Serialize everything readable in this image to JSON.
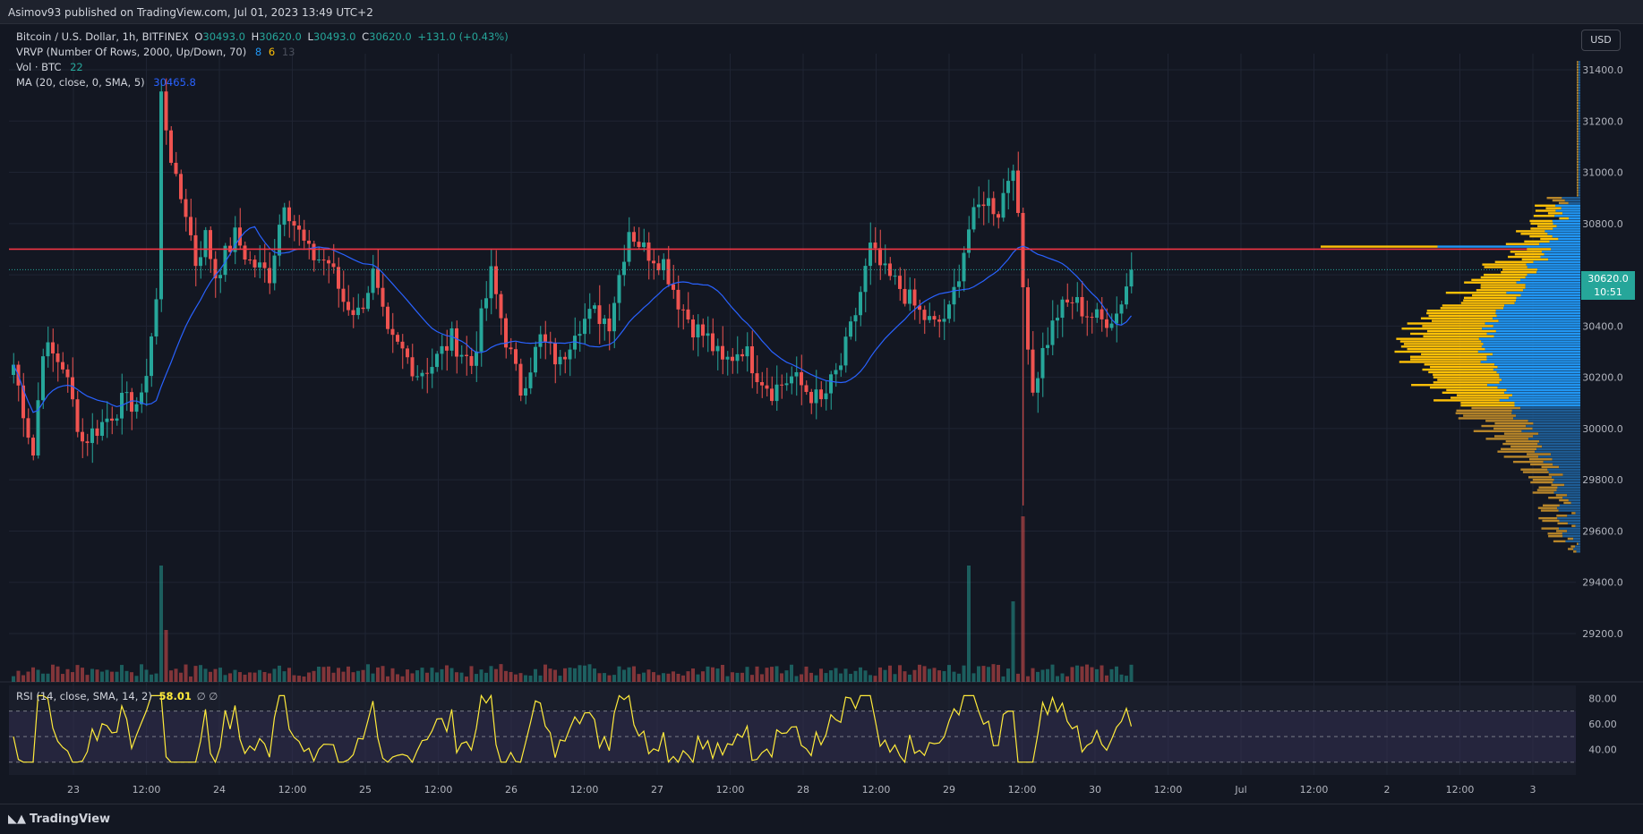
{
  "header": {
    "published_by": "Asimov93 published on TradingView.com, Jul 01, 2023 13:49 UTC+2"
  },
  "legend": {
    "symbol": "Bitcoin / U.S. Dollar, 1h, BITFINEX",
    "ohlc": {
      "o_label": "O",
      "o": "30493.0",
      "h_label": "H",
      "h": "30620.0",
      "l_label": "L",
      "l": "30493.0",
      "c_label": "C",
      "c": "30620.0",
      "change": "+131.0 (+0.43%)"
    },
    "vrvp": {
      "label": "VRVP (Number Of Rows, 2000, Up/Down, 70)",
      "v1": "8",
      "v2": "6",
      "v3": "13",
      "c1": "#2196f3",
      "c2": "#ffc107",
      "c3": "#4a4f5c"
    },
    "vol": {
      "label": "Vol · BTC",
      "value": "22"
    },
    "ma": {
      "label": "MA (20, close, 0, SMA, 5)",
      "value": "30465.8",
      "color": "#2962ff"
    }
  },
  "rsi_legend": {
    "label": "RSI (14, close, SMA, 14, 2)",
    "value": "58.01",
    "flag": "∅ ∅"
  },
  "toolbar": {
    "currency": "USD"
  },
  "price_tag": {
    "price": "30620.0",
    "countdown": "10:51"
  },
  "colors": {
    "up": "#26a69a",
    "down": "#ef5350",
    "ma": "#2962ff",
    "rsi": "#ffeb3b",
    "vrvp_up": "#ffc107",
    "vrvp_down": "#2196f3",
    "level": "#f23645",
    "bg": "#131722",
    "grid": "#1f2433"
  },
  "price_axis": [
    "31400.0",
    "31200.0",
    "31000.0",
    "30800.0",
    "30600.0",
    "30400.0",
    "30200.0",
    "30000.0",
    "29800.0",
    "29600.0",
    "29400.0",
    "29200.0"
  ],
  "rsi_axis": [
    "80.00",
    "60.00",
    "40.00"
  ],
  "time_axis": [
    "23",
    "12:00",
    "24",
    "12:00",
    "25",
    "12:00",
    "26",
    "12:00",
    "27",
    "12:00",
    "28",
    "12:00",
    "29",
    "12:00",
    "30",
    "12:00",
    "Jul",
    "12:00",
    "2",
    "12:00",
    "3"
  ],
  "footer": {
    "brand": "TradingView"
  },
  "chart_data": {
    "type": "candlestick",
    "symbol": "BTCUSD",
    "interval": "1h",
    "ylim": [
      29100,
      31450
    ],
    "horizontal_level": 30700,
    "last_price": 30620,
    "anchors": [
      [
        0,
        30250
      ],
      [
        4,
        29900
      ],
      [
        6,
        30320
      ],
      [
        10,
        30250
      ],
      [
        14,
        29950
      ],
      [
        18,
        30020
      ],
      [
        22,
        30100
      ],
      [
        26,
        30100
      ],
      [
        29,
        30500
      ],
      [
        30,
        31300
      ],
      [
        33,
        30950
      ],
      [
        35,
        30850
      ],
      [
        37,
        30650
      ],
      [
        39,
        30750
      ],
      [
        41,
        30600
      ],
      [
        45,
        30750
      ],
      [
        48,
        30650
      ],
      [
        52,
        30600
      ],
      [
        55,
        30900
      ],
      [
        57,
        30800
      ],
      [
        60,
        30680
      ],
      [
        64,
        30650
      ],
      [
        67,
        30500
      ],
      [
        70,
        30450
      ],
      [
        73,
        30600
      ],
      [
        76,
        30350
      ],
      [
        79,
        30300
      ],
      [
        82,
        30220
      ],
      [
        85,
        30250
      ],
      [
        89,
        30350
      ],
      [
        93,
        30250
      ],
      [
        97,
        30600
      ],
      [
        100,
        30350
      ],
      [
        103,
        30150
      ],
      [
        107,
        30350
      ],
      [
        111,
        30250
      ],
      [
        114,
        30400
      ],
      [
        118,
        30450
      ],
      [
        121,
        30420
      ],
      [
        125,
        30780
      ],
      [
        128,
        30700
      ],
      [
        132,
        30650
      ],
      [
        135,
        30500
      ],
      [
        138,
        30400
      ],
      [
        141,
        30350
      ],
      [
        144,
        30250
      ],
      [
        148,
        30320
      ],
      [
        151,
        30220
      ],
      [
        154,
        30150
      ],
      [
        158,
        30200
      ],
      [
        161,
        30150
      ],
      [
        164,
        30100
      ],
      [
        168,
        30250
      ],
      [
        171,
        30450
      ],
      [
        174,
        30700
      ],
      [
        177,
        30600
      ],
      [
        180,
        30550
      ],
      [
        184,
        30450
      ],
      [
        187,
        30400
      ],
      [
        190,
        30450
      ],
      [
        194,
        30780
      ],
      [
        197,
        30900
      ],
      [
        200,
        30850
      ],
      [
        203,
        31050
      ],
      [
        205,
        30550
      ],
      [
        207,
        30150
      ],
      [
        209,
        30300
      ],
      [
        212,
        30450
      ],
      [
        215,
        30500
      ],
      [
        218,
        30450
      ],
      [
        221,
        30420
      ],
      [
        224,
        30450
      ],
      [
        227,
        30620
      ]
    ],
    "volume_spike_bars": [
      {
        "i": 30,
        "v": "high"
      },
      {
        "i": 194,
        "v": "high"
      },
      {
        "i": 205,
        "v": "extreme"
      }
    ],
    "rsi": {
      "ylim": [
        20,
        90
      ],
      "overbought": 70,
      "oversold": 30,
      "last": 58.01
    }
  }
}
